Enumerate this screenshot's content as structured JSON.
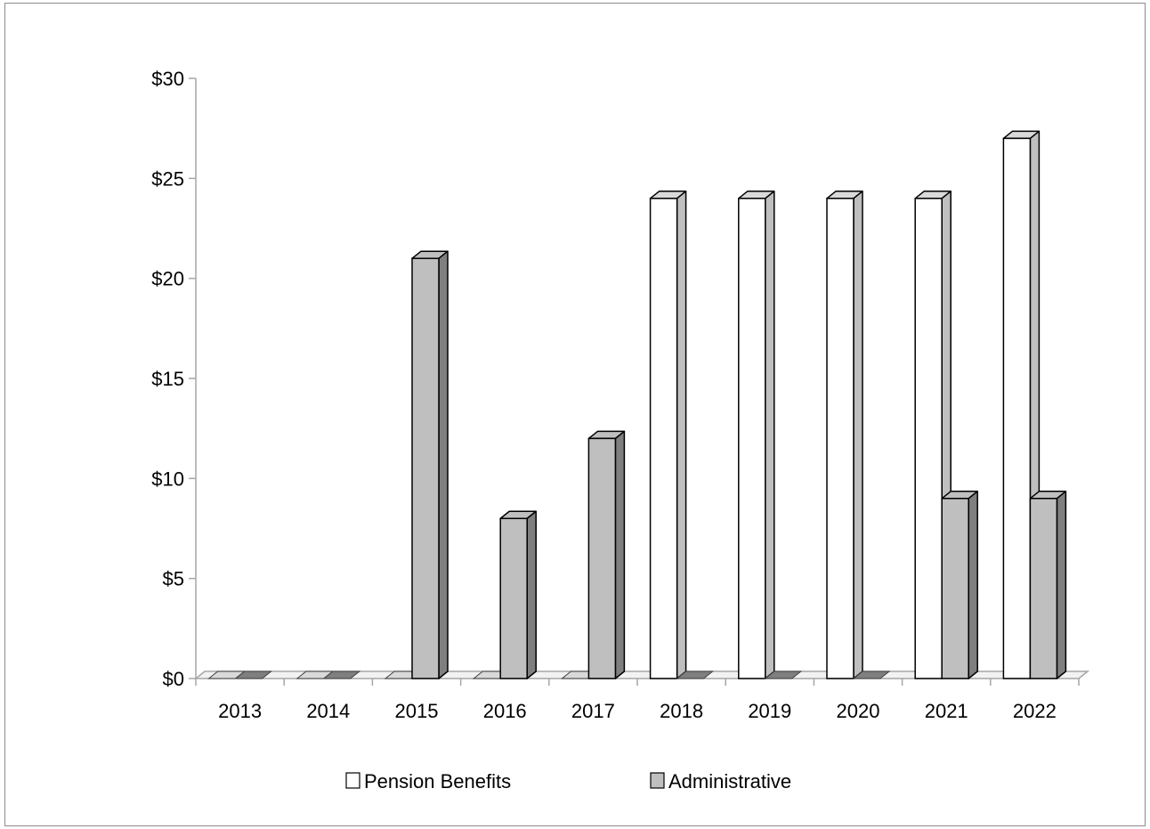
{
  "chart_data": {
    "type": "bar",
    "title": "",
    "xlabel": "",
    "ylabel": "",
    "categories": [
      "2013",
      "2014",
      "2015",
      "2016",
      "2017",
      "2018",
      "2019",
      "2020",
      "2021",
      "2022"
    ],
    "series": [
      {
        "name": "Pension Benefits",
        "values": [
          0,
          0,
          0,
          0,
          0,
          24,
          24,
          24,
          24,
          27
        ],
        "color": "#ffffff"
      },
      {
        "name": "Administrative",
        "values": [
          0,
          0,
          21,
          8,
          12,
          0,
          0,
          0,
          9,
          9
        ],
        "color": "#bfbfbf"
      }
    ],
    "ylim": [
      0,
      30
    ],
    "yticks": [
      0,
      5,
      10,
      15,
      20,
      25,
      30
    ],
    "ytick_labels": [
      "$0",
      "$5",
      "$10",
      "$15",
      "$20",
      "$25",
      "$30"
    ],
    "grid": false,
    "style": "3d-clustered-column",
    "legend": {
      "placement": "bottom",
      "entries": [
        "Pension Benefits",
        "Administrative"
      ]
    }
  },
  "colors": {
    "pension_fill": "#ffffff",
    "admin_fill": "#bfbfbf",
    "admin_side": "#7f7f7f",
    "pension_top": "#d9d9d9",
    "axis": "#a6a6a6",
    "outline": "#000000"
  }
}
